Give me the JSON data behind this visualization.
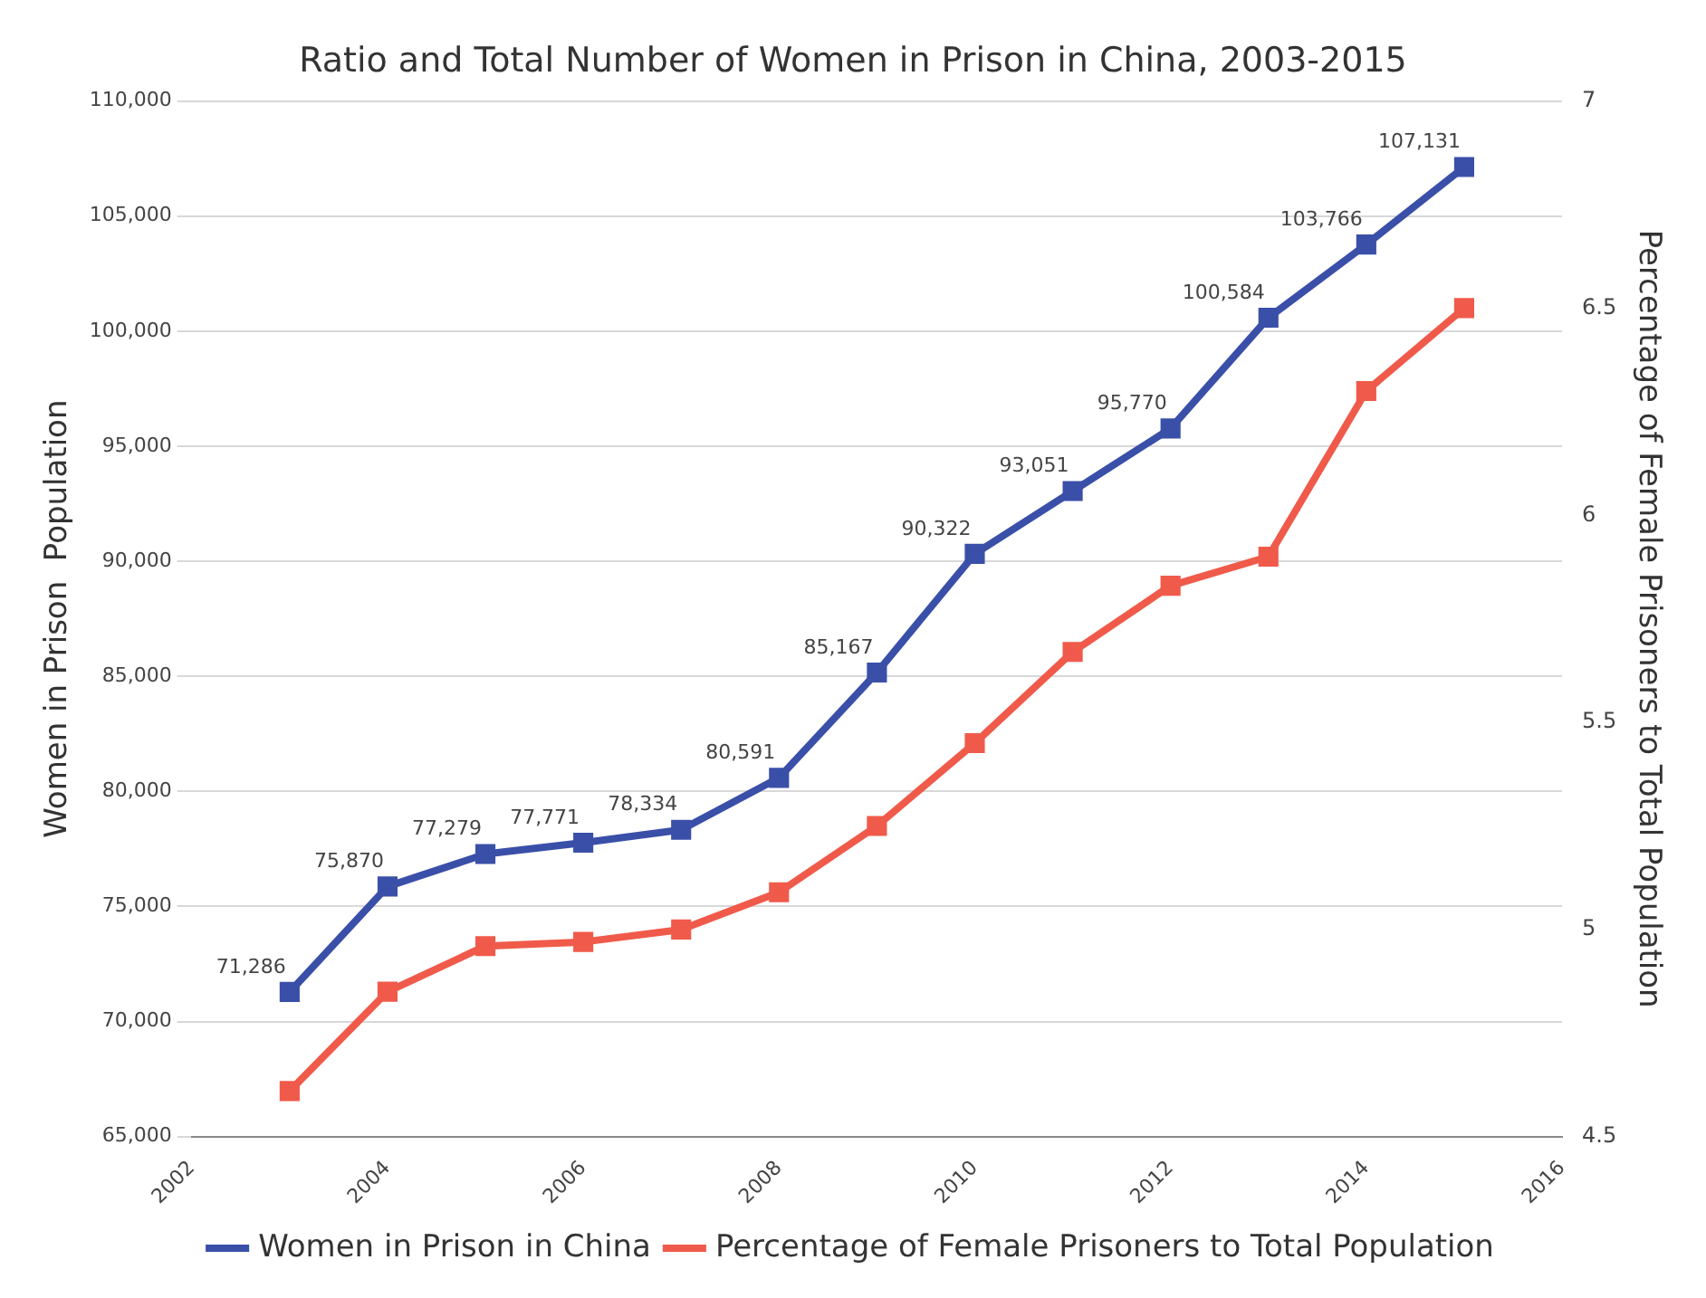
{
  "chart_data": {
    "type": "line",
    "title": "Ratio and Total Number of Women in Prison in China, 2003-2015",
    "ylabel": "Women in Prison  Population",
    "y2label": "Percentage of Female Prisoners to Total Population",
    "x": [
      2003,
      2004,
      2005,
      2006,
      2007,
      2008,
      2009,
      2010,
      2011,
      2012,
      2013,
      2014,
      2015
    ],
    "xlim": [
      2002,
      2016
    ],
    "xticks": [
      2002,
      2004,
      2006,
      2008,
      2010,
      2012,
      2014,
      2016
    ],
    "ylim": [
      65000,
      110000
    ],
    "yticks": [
      {
        "value": 65000,
        "label": "65,000"
      },
      {
        "value": 70000,
        "label": "70,000"
      },
      {
        "value": 75000,
        "label": "75,000"
      },
      {
        "value": 80000,
        "label": "80,000"
      },
      {
        "value": 85000,
        "label": "85,000"
      },
      {
        "value": 90000,
        "label": "90,000"
      },
      {
        "value": 95000,
        "label": "95,000"
      },
      {
        "value": 100000,
        "label": "100,000"
      },
      {
        "value": 105000,
        "label": "105,000"
      },
      {
        "value": 110000,
        "label": "110,000"
      }
    ],
    "y2lim": [
      4.5,
      7
    ],
    "y2ticks": [
      4.5,
      5,
      5.5,
      6,
      6.5,
      7
    ],
    "series": [
      {
        "name": "Women in Prison in China",
        "color": "#3a4fa8",
        "values": [
          71286,
          75870,
          77279,
          77771,
          78334,
          80591,
          85167,
          90322,
          93051,
          95770,
          100584,
          103766,
          107131
        ],
        "value_labels": [
          "71,286",
          "75,870",
          "77,279",
          "77,771",
          "78,334",
          "80,591",
          "85,167",
          "90,322",
          "93,051",
          "95,770",
          "100,584",
          "103,766",
          "107,131"
        ]
      },
      {
        "name": "Percentage of Female Prisoners to Total Population",
        "color": "#f05a4a",
        "axis": "y2",
        "values": [
          4.61,
          4.85,
          4.96,
          4.97,
          5.0,
          5.09,
          5.25,
          5.45,
          5.67,
          5.83,
          5.9,
          6.3,
          6.5
        ]
      }
    ],
    "grid": "y",
    "legend": "bottom",
    "marker": "square",
    "line_style": "solid"
  }
}
